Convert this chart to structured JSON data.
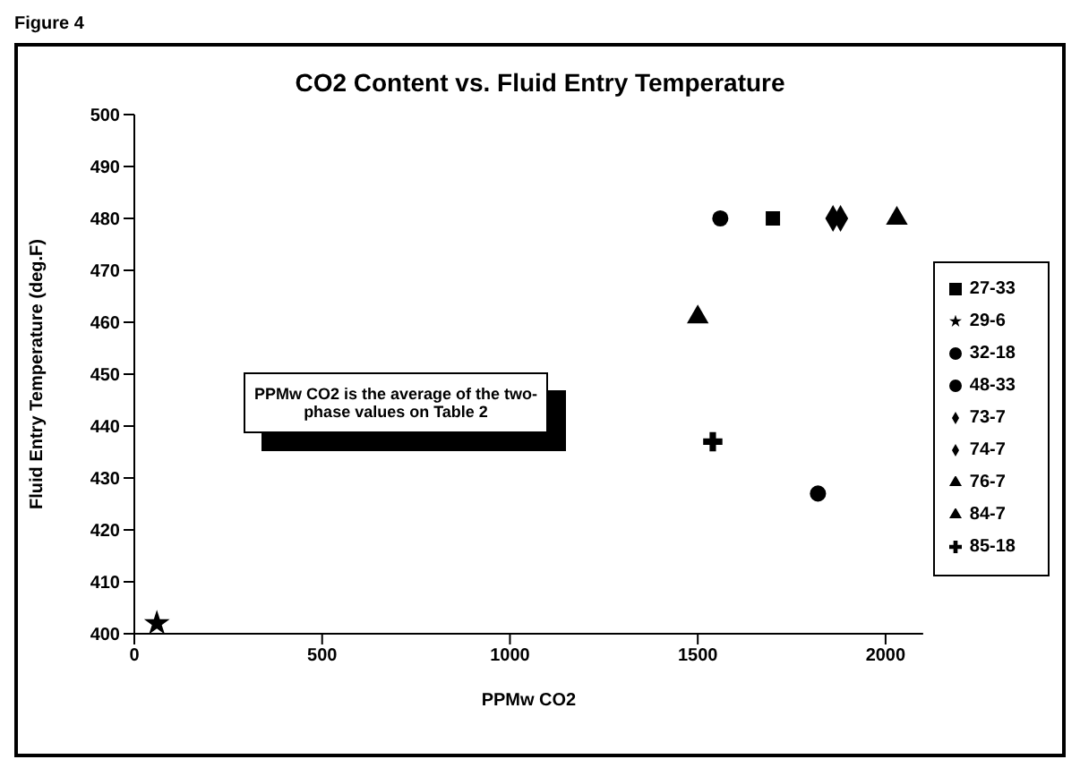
{
  "chart_data": {
    "type": "scatter",
    "title": "CO2 Content vs. Fluid Entry Temperature",
    "xlabel": "PPMw CO2",
    "ylabel": "Fluid Entry Temperature (deg.F)",
    "annotations": [
      "Figure 4",
      "PPMw CO2 is the average of the two-phase values on Table 2"
    ],
    "xlim": [
      0,
      2100
    ],
    "xticks": [
      0,
      500,
      1000,
      1500,
      2000
    ],
    "ylim": [
      400,
      500
    ],
    "yticks": [
      400,
      410,
      420,
      430,
      440,
      450,
      460,
      470,
      480,
      490,
      500
    ],
    "grid": false,
    "legend": "right",
    "series": [
      {
        "name": "48-33",
        "color": "#000000",
        "marker": "circle",
        "x": [
          1560
        ],
        "values": [
          480
        ]
      },
      {
        "name": "27-33",
        "color": "#000000",
        "marker": "square",
        "x": [
          1700
        ],
        "values": [
          480
        ]
      },
      {
        "name": "73-7",
        "color": "#000000",
        "marker": "diamond",
        "x": [
          1880
        ],
        "values": [
          480
        ]
      },
      {
        "name": "74-7",
        "color": "#000000",
        "marker": "diamond",
        "x": [
          1860
        ],
        "values": [
          480
        ]
      },
      {
        "name": "84-7",
        "color": "#000000",
        "marker": "triangle",
        "x": [
          2030
        ],
        "values": [
          480
        ]
      },
      {
        "name": "76-7",
        "color": "#000000",
        "marker": "triangle",
        "x": [
          1500
        ],
        "values": [
          461
        ]
      },
      {
        "name": "85-18",
        "color": "#000000",
        "marker": "cross",
        "x": [
          1540
        ],
        "values": [
          437
        ]
      },
      {
        "name": "32-18",
        "color": "#000000",
        "marker": "circle",
        "x": [
          1820
        ],
        "values": [
          427
        ]
      },
      {
        "name": "29-6",
        "color": "#000000",
        "marker": "star",
        "x": [
          60
        ],
        "values": [
          402
        ]
      }
    ]
  }
}
